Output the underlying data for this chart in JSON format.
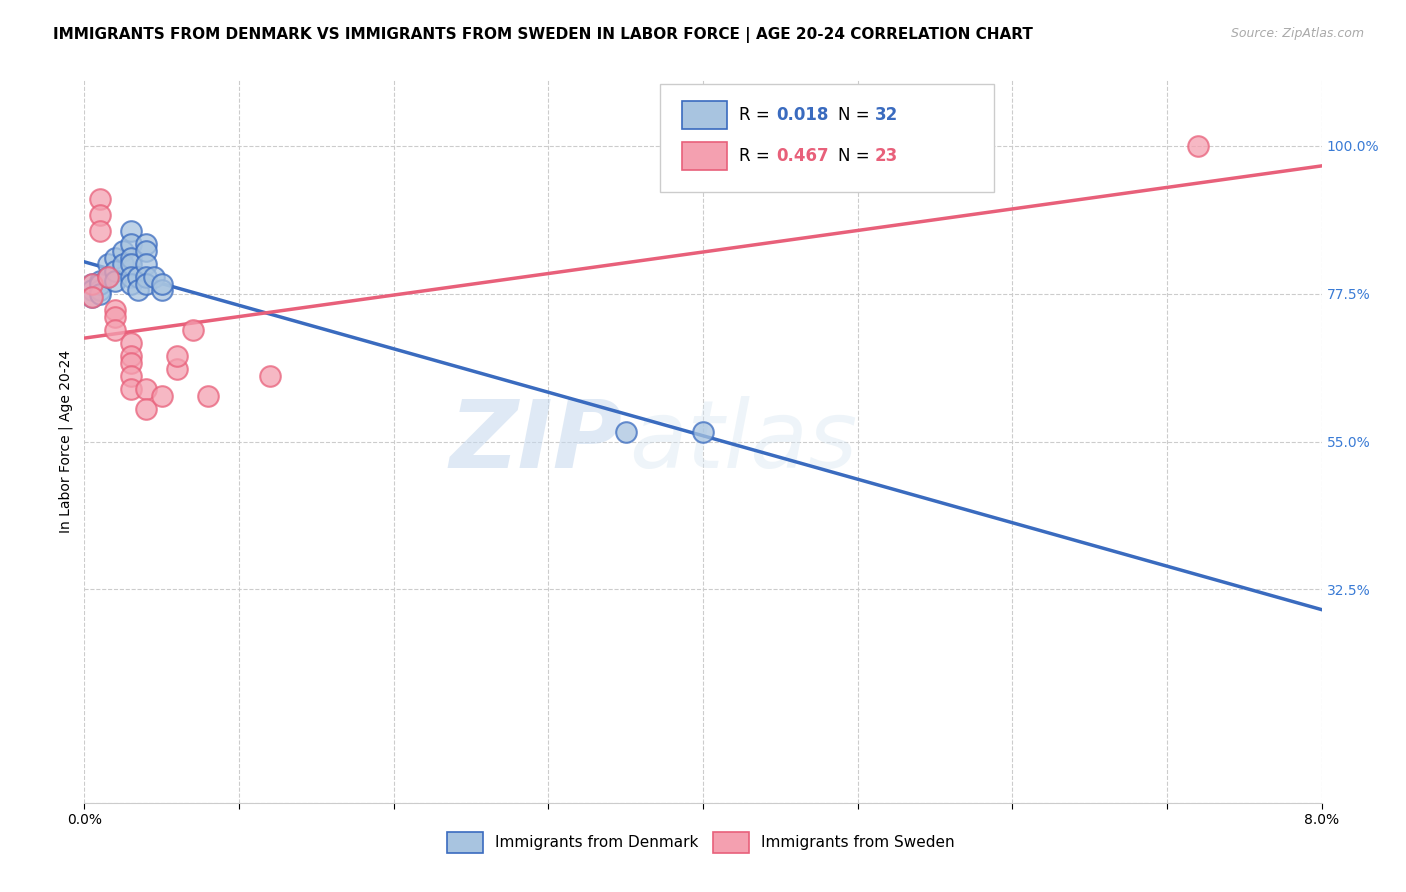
{
  "title": "IMMIGRANTS FROM DENMARK VS IMMIGRANTS FROM SWEDEN IN LABOR FORCE | AGE 20-24 CORRELATION CHART",
  "source_text": "Source: ZipAtlas.com",
  "xlabel": "",
  "ylabel": "In Labor Force | Age 20-24",
  "xlim": [
    0.0,
    0.08
  ],
  "ylim": [
    0.0,
    1.1
  ],
  "yticks": [
    0.0,
    0.325,
    0.55,
    0.775,
    1.0
  ],
  "ytick_labels": [
    "",
    "32.5%",
    "55.0%",
    "77.5%",
    "100.0%"
  ],
  "xticks": [
    0.0,
    0.01,
    0.02,
    0.03,
    0.04,
    0.05,
    0.06,
    0.07,
    0.08
  ],
  "xtick_labels": [
    "0.0%",
    "",
    "",
    "",
    "",
    "",
    "",
    "",
    "8.0%"
  ],
  "legend_r_denmark": "0.018",
  "legend_n_denmark": "32",
  "legend_r_sweden": "0.467",
  "legend_n_sweden": "23",
  "denmark_color": "#a8c4e0",
  "sweden_color": "#f4a0b0",
  "denmark_line_color": "#3a6bbf",
  "sweden_line_color": "#e8607a",
  "watermark_zip": "ZIP",
  "watermark_atlas": "atlas",
  "denmark_x": [
    0.0005,
    0.0005,
    0.0005,
    0.001,
    0.001,
    0.001,
    0.001,
    0.0015,
    0.0015,
    0.002,
    0.002,
    0.002,
    0.0025,
    0.0025,
    0.003,
    0.003,
    0.003,
    0.003,
    0.003,
    0.003,
    0.0035,
    0.0035,
    0.004,
    0.004,
    0.004,
    0.004,
    0.004,
    0.0045,
    0.005,
    0.005,
    0.035,
    0.04
  ],
  "denmark_y": [
    0.79,
    0.78,
    0.77,
    0.795,
    0.78,
    0.79,
    0.775,
    0.82,
    0.8,
    0.83,
    0.81,
    0.795,
    0.84,
    0.82,
    0.87,
    0.85,
    0.83,
    0.82,
    0.8,
    0.79,
    0.8,
    0.78,
    0.85,
    0.84,
    0.82,
    0.8,
    0.79,
    0.8,
    0.78,
    0.79,
    0.565,
    0.565
  ],
  "sweden_x": [
    0.0005,
    0.0005,
    0.001,
    0.001,
    0.001,
    0.0015,
    0.002,
    0.002,
    0.002,
    0.003,
    0.003,
    0.003,
    0.003,
    0.003,
    0.004,
    0.004,
    0.005,
    0.006,
    0.006,
    0.007,
    0.008,
    0.012,
    0.072
  ],
  "sweden_y": [
    0.79,
    0.77,
    0.92,
    0.895,
    0.87,
    0.8,
    0.75,
    0.74,
    0.72,
    0.7,
    0.68,
    0.67,
    0.65,
    0.63,
    0.63,
    0.6,
    0.62,
    0.66,
    0.68,
    0.72,
    0.62,
    0.65,
    1.0
  ],
  "grid_color": "#cccccc",
  "background_color": "#ffffff",
  "title_fontsize": 11,
  "axis_label_fontsize": 10,
  "tick_fontsize": 10,
  "legend_fontsize": 12
}
